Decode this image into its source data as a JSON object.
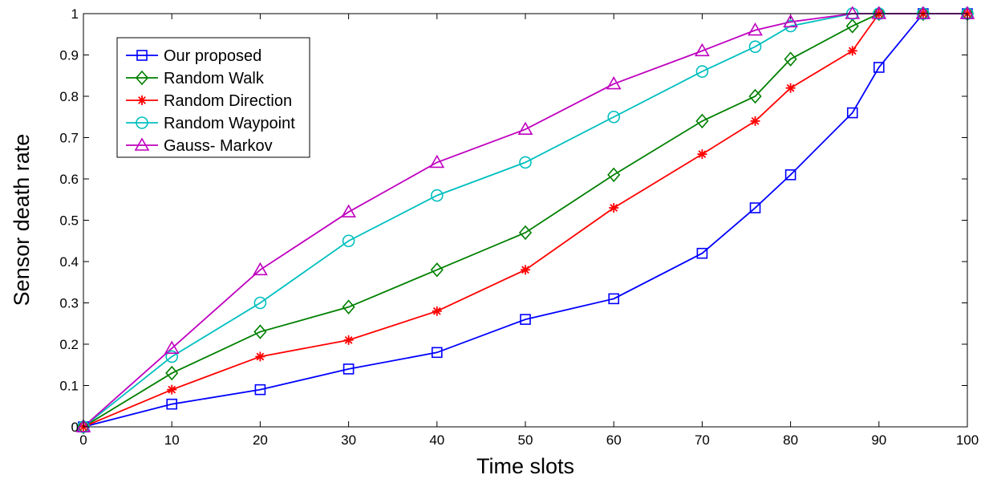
{
  "chart_data": {
    "type": "line",
    "title": "",
    "xlabel": "Time slots",
    "ylabel": "Sensor death rate",
    "xlim": [
      0,
      100
    ],
    "ylim": [
      0,
      1
    ],
    "xticks": [
      0,
      10,
      20,
      30,
      40,
      50,
      60,
      70,
      80,
      90,
      100
    ],
    "yticks": [
      0,
      0.1,
      0.2,
      0.3,
      0.4,
      0.5,
      0.6,
      0.7,
      0.8,
      0.9,
      1
    ],
    "xtick_labels": [
      "0",
      "10",
      "20",
      "30",
      "40",
      "50",
      "60",
      "70",
      "80",
      "90",
      "100"
    ],
    "ytick_labels": [
      "0",
      "0.1",
      "0.2",
      "0.3",
      "0.4",
      "0.5",
      "0.6",
      "0.7",
      "0.8",
      "0.9",
      "1"
    ],
    "grid": false,
    "legend_position": "top-left",
    "series": [
      {
        "name": "Our proposed",
        "color": "#0000ff",
        "marker": "square",
        "x": [
          0,
          10,
          20,
          30,
          40,
          50,
          60,
          70,
          76,
          80,
          87,
          90,
          95,
          100
        ],
        "y": [
          0,
          0.055,
          0.09,
          0.14,
          0.18,
          0.26,
          0.31,
          0.42,
          0.53,
          0.61,
          0.76,
          0.87,
          1.0,
          1.0
        ]
      },
      {
        "name": "Random Walk",
        "color": "#008000",
        "marker": "diamond",
        "x": [
          0,
          10,
          20,
          30,
          40,
          50,
          60,
          70,
          76,
          80,
          87,
          90,
          95,
          100
        ],
        "y": [
          0,
          0.13,
          0.23,
          0.29,
          0.38,
          0.47,
          0.61,
          0.74,
          0.8,
          0.89,
          0.97,
          1.0,
          1.0,
          1.0
        ]
      },
      {
        "name": "Random Direction",
        "color": "#ff0000",
        "marker": "asterisk",
        "x": [
          0,
          10,
          20,
          30,
          40,
          50,
          60,
          70,
          76,
          80,
          87,
          90,
          95,
          100
        ],
        "y": [
          0,
          0.09,
          0.17,
          0.21,
          0.28,
          0.38,
          0.53,
          0.66,
          0.74,
          0.82,
          0.91,
          1.0,
          1.0,
          1.0
        ]
      },
      {
        "name": "Random Waypoint",
        "color": "#00bfbf",
        "marker": "circle",
        "x": [
          0,
          10,
          20,
          30,
          40,
          50,
          60,
          70,
          76,
          80,
          87,
          90,
          95,
          100
        ],
        "y": [
          0,
          0.17,
          0.3,
          0.45,
          0.56,
          0.64,
          0.75,
          0.86,
          0.92,
          0.97,
          1.0,
          1.0,
          1.0,
          1.0
        ]
      },
      {
        "name": "Gauss- Markov",
        "color": "#bf00bf",
        "marker": "triangle",
        "x": [
          0,
          10,
          20,
          30,
          40,
          50,
          60,
          70,
          76,
          80,
          87,
          90,
          95,
          100
        ],
        "y": [
          0,
          0.19,
          0.38,
          0.52,
          0.64,
          0.72,
          0.83,
          0.91,
          0.96,
          0.98,
          1.0,
          1.0,
          1.0,
          1.0
        ]
      }
    ]
  }
}
